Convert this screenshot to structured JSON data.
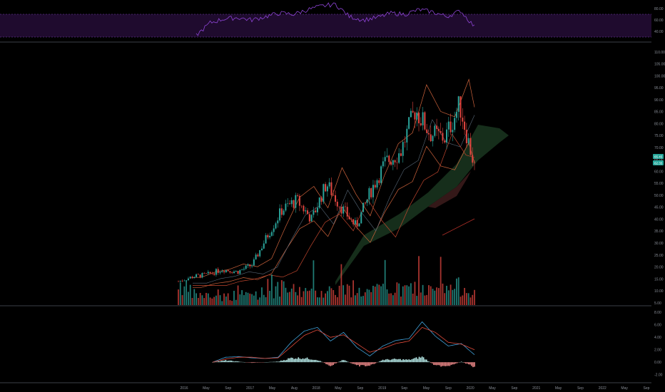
{
  "colors": {
    "background": "#000000",
    "axis_text": "#8a8f98",
    "separator": "#3b3f47",
    "rsi_fill": "#1f0b2e",
    "rsi_line": "#8e44d6",
    "rsi_band": "#7b3fb8",
    "up": "#2aa39a",
    "down": "#e0453f",
    "bb": "#d0643c",
    "ma_fast": "#5a6a7a",
    "ma_slow": "#c0462e",
    "cloud_green": "#1b3a22",
    "cloud_red": "#3a1b1b",
    "ma200": "#b03028",
    "macd": "#3fa0d8",
    "signal": "#e04a3a",
    "hist_up": "#b8ecea",
    "hist_down": "#f08a8a",
    "badge": "#26a69a"
  },
  "rsi_axis": {
    "ticks": [
      "80.00",
      "60.00",
      "40.00"
    ]
  },
  "price_axis": {
    "ticks": [
      "110.00",
      "105.00",
      "100.00",
      "95.00",
      "90.00",
      "85.00",
      "80.00",
      "75.00",
      "70.00",
      "65.00",
      "60.00",
      "55.00",
      "50.00",
      "45.00",
      "40.00",
      "35.00",
      "30.00",
      "25.00",
      "20.00",
      "15.00",
      "10.00",
      "5.00"
    ],
    "badges": [
      "65.45",
      "62.35",
      "60.00"
    ]
  },
  "macd_axis": {
    "ticks": [
      "8.00",
      "6.00",
      "4.00",
      "2.00",
      "0.00",
      "-2.00"
    ]
  },
  "x_axis": {
    "labels": [
      "2016",
      "May",
      "Sep",
      "2017",
      "May",
      "Aug",
      "2018",
      "May",
      "Sep",
      "2019",
      "Sep",
      "May",
      "Sep",
      "2020",
      "May",
      "Sep",
      "2021",
      "May",
      "Sep",
      "2022",
      "May",
      "Sep"
    ]
  },
  "chart_data": {
    "type": "line",
    "series": [
      {
        "type": "candlestick-close",
        "x": [
          "2016-02",
          "2016-05",
          "2016-09",
          "2017-01",
          "2017-05",
          "2017-08",
          "2017-12",
          "2018-03",
          "2018-05",
          "2018-07",
          "2018-09",
          "2018-11",
          "2019-01",
          "2019-03",
          "2019-05",
          "2019-07",
          "2019-09",
          "2019-11",
          "2020-01",
          "2020-02",
          "2020-03"
        ],
        "values": [
          14,
          16,
          17,
          19,
          18,
          21,
          33,
          44,
          48,
          40,
          55,
          45,
          37,
          52,
          64,
          68,
          86,
          76,
          74,
          88,
          62
        ]
      },
      {
        "type": "volume",
        "values": [
          24,
          12,
          10,
          9,
          11,
          12,
          14,
          18,
          15,
          13,
          16,
          17,
          15,
          14,
          18,
          16,
          19,
          15,
          17,
          20,
          17
        ]
      }
    ],
    "rsi": {
      "range": [
        30,
        90
      ],
      "bands": [
        70,
        30
      ],
      "values": [
        33,
        55,
        62,
        64,
        60,
        66,
        72,
        70,
        78,
        84,
        88,
        66,
        60,
        64,
        72,
        70,
        78,
        74,
        66,
        76,
        48
      ]
    },
    "macd": {
      "range": [
        -2.5,
        8.5
      ],
      "macd": [
        0,
        0.8,
        0.9,
        0.7,
        0.6,
        0.8,
        3.2,
        5.0,
        5.6,
        3.4,
        4.8,
        2.4,
        1.0,
        2.6,
        3.5,
        3.8,
        6.5,
        4.2,
        2.6,
        3.0,
        1.2
      ],
      "signal": [
        0,
        0.5,
        0.8,
        0.8,
        0.6,
        0.7,
        2.5,
        4.3,
        5.2,
        4.0,
        4.4,
        3.0,
        1.6,
        2.2,
        3.0,
        3.4,
        5.6,
        4.8,
        3.2,
        2.9,
        2.0
      ],
      "hist": [
        0,
        0.3,
        0.1,
        -0.1,
        0,
        0.1,
        0.7,
        0.7,
        0.4,
        -0.6,
        0.4,
        -0.6,
        -0.6,
        0.4,
        0.5,
        0.4,
        0.9,
        -0.6,
        -0.6,
        0.1,
        -0.8
      ]
    }
  }
}
